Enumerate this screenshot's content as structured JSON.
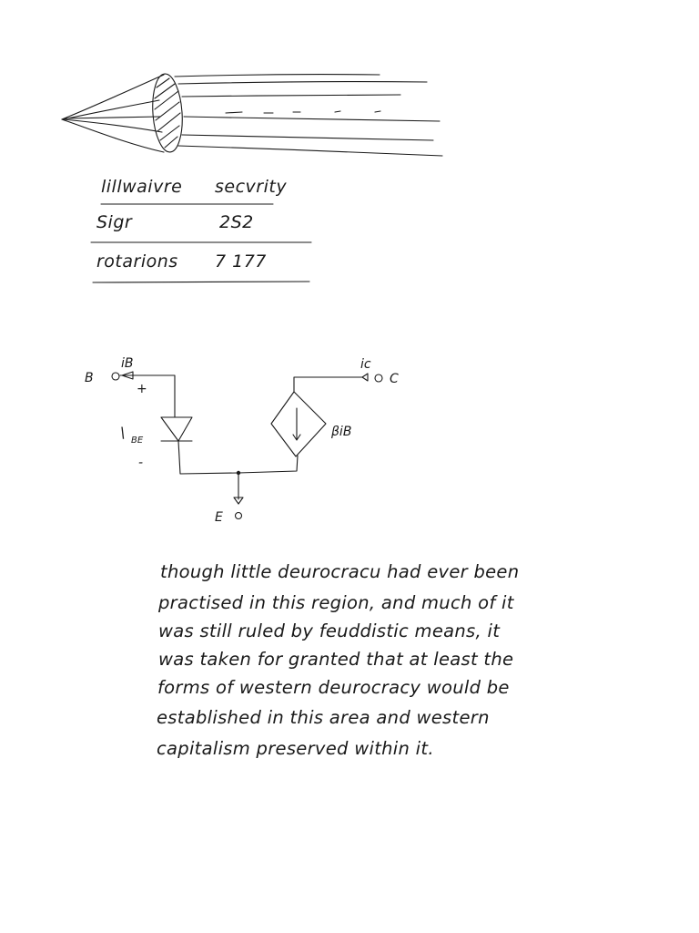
{
  "table": {
    "headers": [
      "lillwaivre",
      "secvrity"
    ],
    "rows": [
      [
        "Sigr",
        "2S2"
      ],
      [
        "rotarions",
        "7 177"
      ]
    ]
  },
  "circuit": {
    "labels": {
      "base_current": "iB",
      "base_terminal": "B",
      "plus": "+",
      "vbe": "BE",
      "minus": "-",
      "collector_current": "ic",
      "collector_terminal": "C",
      "source_gain": "βiB",
      "emitter_terminal": "E"
    }
  },
  "paragraph": {
    "lines": [
      "though little deurocracu had ever been",
      "practised in this region, and much of it",
      "was still ruled by feuddistic means, it",
      "was taken for granted that at least the",
      "forms of western deurocracy would be",
      "established in this area and western",
      "capitalism preserved within it."
    ]
  }
}
